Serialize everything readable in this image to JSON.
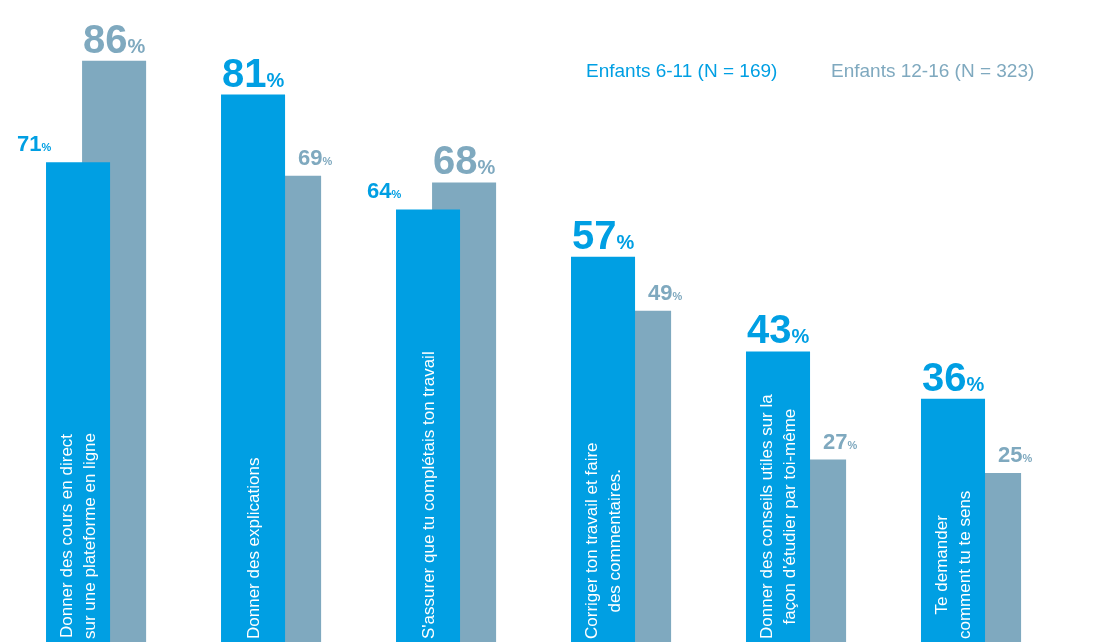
{
  "chart_data": {
    "type": "bar",
    "categories": [
      "Donner des cours en direct\nsur une plateforme en ligne",
      "Donner des explications",
      "S'assurer que tu complétais ton travail",
      "Corriger ton travail et faire\ndes commentaires.",
      "Donner des conseils utiles sur la\nfaçon d'étudier par toi-même",
      "Te demander\ncomment tu te sens"
    ],
    "series": [
      {
        "name": "Enfants 6-11 (N = 169)",
        "color": "#009fe3",
        "values": [
          71,
          81,
          64,
          57,
          43,
          36
        ],
        "value_labels": [
          "71%",
          "81%",
          "64%",
          "57%",
          "43%",
          "36%"
        ]
      },
      {
        "name": "Enfants 12-16 (N = 323)",
        "color": "#7fa9bf",
        "values": [
          86,
          69,
          68,
          49,
          27,
          25
        ],
        "value_labels": [
          "86%",
          "69%",
          "68%",
          "49%",
          "27%",
          "25%"
        ]
      }
    ],
    "ylim": [
      0,
      95
    ],
    "legend": false,
    "grid": false
  }
}
